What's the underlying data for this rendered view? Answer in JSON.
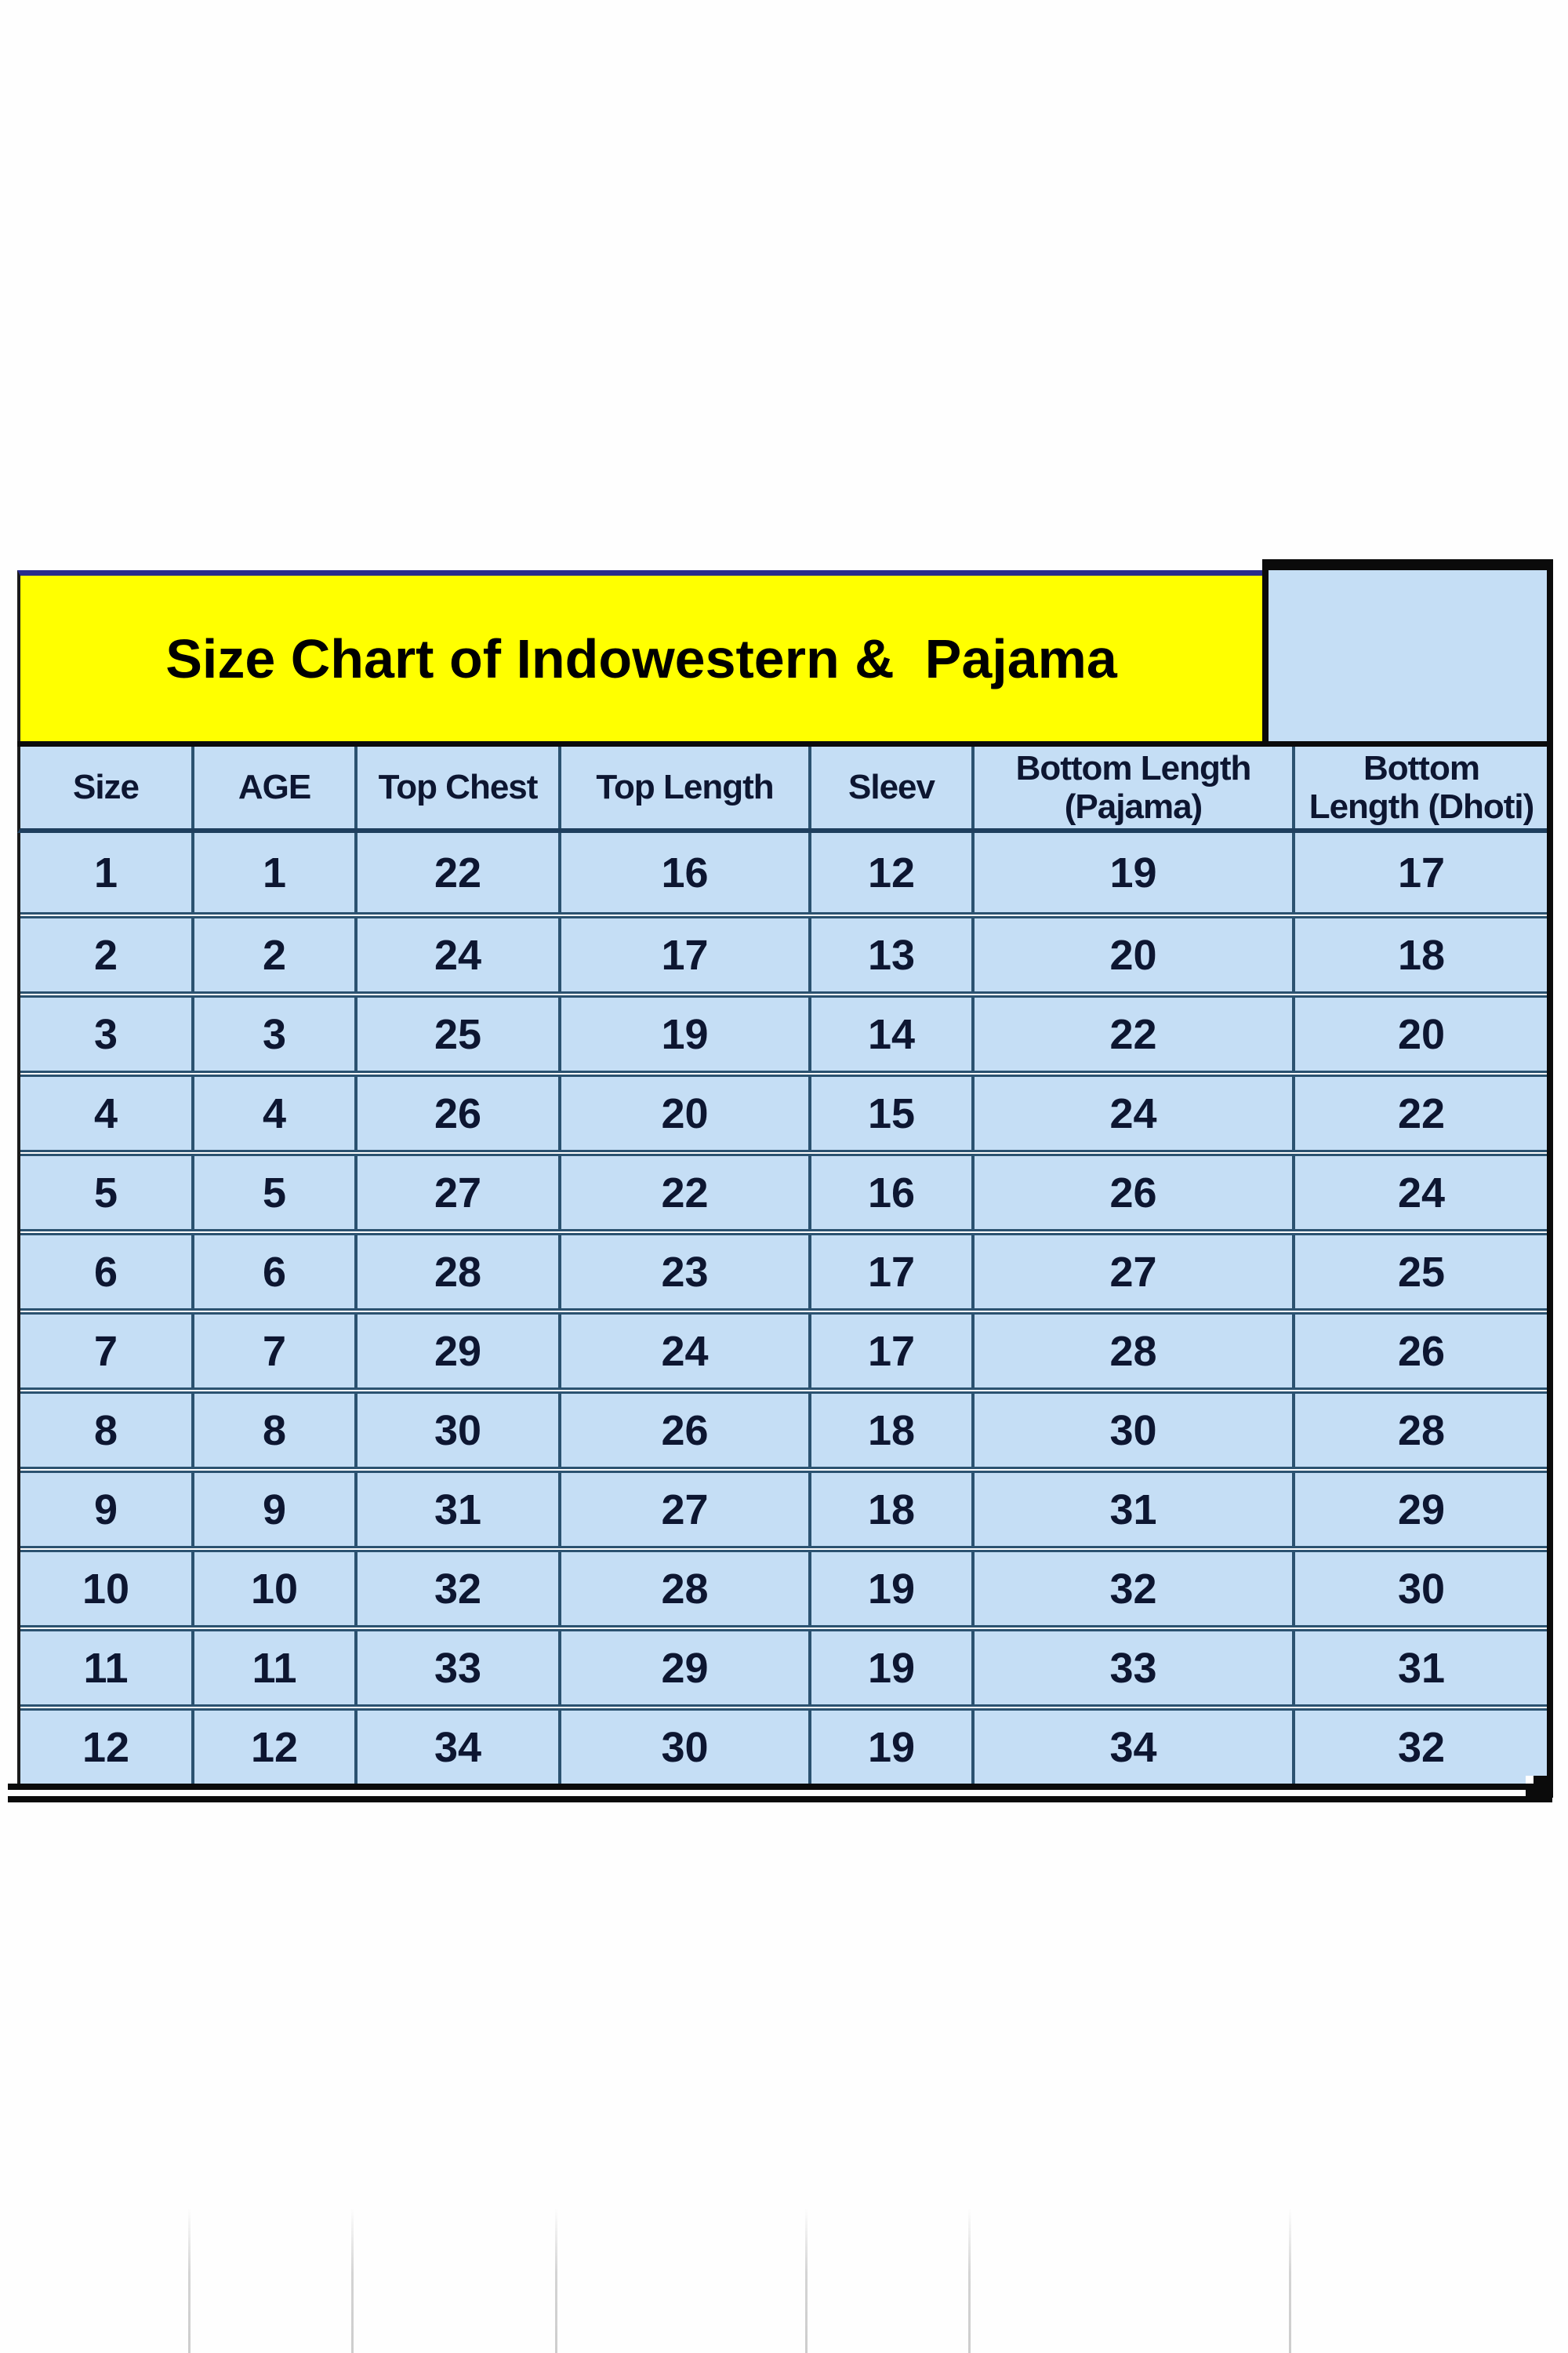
{
  "chart_data": {
    "type": "table",
    "title": "Size Chart of Indowestern &  Pajama",
    "columns": [
      "Size",
      "AGE",
      "Top Chest",
      "Top Length",
      "Sleev",
      "Bottom Length (Pajama)",
      "Bottom Length (Dhoti)"
    ],
    "header_display": [
      "Size",
      "AGE",
      "Top Chest",
      "Top Length",
      "Sleev",
      "Bottom Length\n(Pajama)",
      "Bottom\nLength (Dhoti)"
    ],
    "rows": [
      [
        1,
        1,
        22,
        16,
        12,
        19,
        17
      ],
      [
        2,
        2,
        24,
        17,
        13,
        20,
        18
      ],
      [
        3,
        3,
        25,
        19,
        14,
        22,
        20
      ],
      [
        4,
        4,
        26,
        20,
        15,
        24,
        22
      ],
      [
        5,
        5,
        27,
        22,
        16,
        26,
        24
      ],
      [
        6,
        6,
        28,
        23,
        17,
        27,
        25
      ],
      [
        7,
        7,
        29,
        24,
        17,
        28,
        26
      ],
      [
        8,
        8,
        30,
        26,
        18,
        30,
        28
      ],
      [
        9,
        9,
        31,
        27,
        18,
        31,
        29
      ],
      [
        10,
        10,
        32,
        28,
        19,
        32,
        30
      ],
      [
        11,
        11,
        33,
        29,
        19,
        33,
        31
      ],
      [
        12,
        12,
        34,
        30,
        19,
        34,
        32
      ]
    ]
  },
  "colors": {
    "title_bg": "#FFFF00",
    "title_top_border": "#2A2D8C",
    "cell_bg": "#C5DEF5",
    "grid_line": "#2B5270",
    "selection_border": "#0B0B0B",
    "text": "#0D1631",
    "faint_gridline": "#D4D4D4"
  }
}
